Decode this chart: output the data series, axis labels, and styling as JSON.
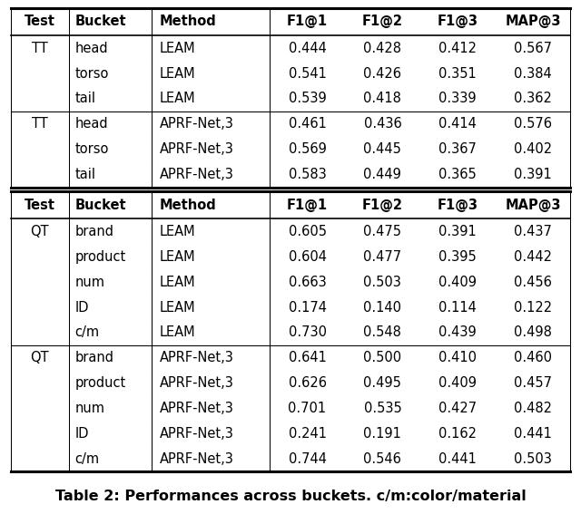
{
  "caption": "Table 2: Performances across buckets. c/m:color/material",
  "headers": [
    "Test",
    "Bucket",
    "Method",
    "F1@1",
    "F1@2",
    "F1@3",
    "MAP@3"
  ],
  "section1": {
    "rows": [
      [
        "TT",
        "head",
        "LEAM",
        "0.444",
        "0.428",
        "0.412",
        "0.567"
      ],
      [
        "",
        "torso",
        "LEAM",
        "0.541",
        "0.426",
        "0.351",
        "0.384"
      ],
      [
        "",
        "tail",
        "LEAM",
        "0.539",
        "0.418",
        "0.339",
        "0.362"
      ],
      [
        "TT",
        "head",
        "APRF-Net,3",
        "0.461",
        "0.436",
        "0.414",
        "0.576"
      ],
      [
        "",
        "torso",
        "APRF-Net,3",
        "0.569",
        "0.445",
        "0.367",
        "0.402"
      ],
      [
        "",
        "tail",
        "APRF-Net,3",
        "0.583",
        "0.449",
        "0.365",
        "0.391"
      ]
    ]
  },
  "section2": {
    "rows": [
      [
        "QT",
        "brand",
        "LEAM",
        "0.605",
        "0.475",
        "0.391",
        "0.437"
      ],
      [
        "",
        "product",
        "LEAM",
        "0.604",
        "0.477",
        "0.395",
        "0.442"
      ],
      [
        "",
        "num",
        "LEAM",
        "0.663",
        "0.503",
        "0.409",
        "0.456"
      ],
      [
        "",
        "ID",
        "LEAM",
        "0.174",
        "0.140",
        "0.114",
        "0.122"
      ],
      [
        "",
        "c/m",
        "LEAM",
        "0.730",
        "0.548",
        "0.439",
        "0.498"
      ],
      [
        "QT",
        "brand",
        "APRF-Net,3",
        "0.641",
        "0.500",
        "0.410",
        "0.460"
      ],
      [
        "",
        "product",
        "APRF-Net,3",
        "0.626",
        "0.495",
        "0.409",
        "0.457"
      ],
      [
        "",
        "num",
        "APRF-Net,3",
        "0.701",
        "0.535",
        "0.427",
        "0.482"
      ],
      [
        "",
        "ID",
        "APRF-Net,3",
        "0.241",
        "0.191",
        "0.162",
        "0.441"
      ],
      [
        "",
        "c/m",
        "APRF-Net,3",
        "0.744",
        "0.546",
        "0.441",
        "0.503"
      ]
    ]
  },
  "col_aligns": [
    "center",
    "left",
    "left",
    "center",
    "center",
    "center",
    "center"
  ],
  "font_size": 10.5,
  "caption_font_size": 11.5,
  "bg_color": "#ffffff"
}
